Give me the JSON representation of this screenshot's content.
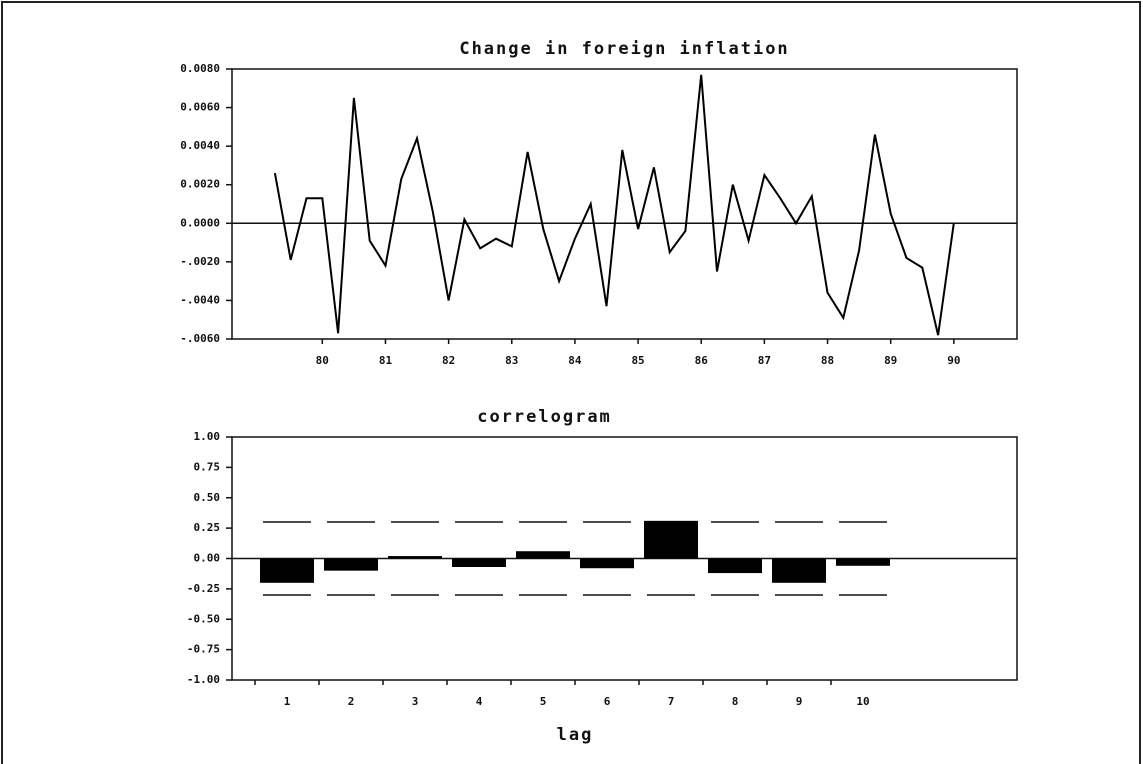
{
  "chart_data": [
    {
      "type": "line",
      "title": "Change in foreign inflation",
      "x": [
        79.25,
        79.5,
        79.75,
        80,
        80.25,
        80.5,
        80.75,
        81,
        81.25,
        81.5,
        81.75,
        82,
        82.25,
        82.5,
        82.75,
        83,
        83.25,
        83.5,
        83.75,
        84,
        84.25,
        84.5,
        84.75,
        85,
        85.25,
        85.5,
        85.75,
        86,
        86.25,
        86.5,
        86.75,
        87,
        87.25,
        87.5,
        87.75,
        88,
        88.25,
        88.5,
        88.75,
        89,
        89.25,
        89.5,
        89.75,
        90
      ],
      "values": [
        0.0026,
        -0.0019,
        0.0013,
        0.0013,
        -0.0057,
        0.0065,
        -0.0009,
        -0.0022,
        0.0023,
        0.0044,
        0.0006,
        -0.004,
        0.0002,
        -0.0013,
        -0.0008,
        -0.0012,
        0.0037,
        -0.0003,
        -0.003,
        -0.0008,
        0.001,
        -0.0043,
        0.0038,
        -0.0003,
        0.0029,
        -0.0015,
        -0.0004,
        0.0077,
        -0.0025,
        0.002,
        -0.0009,
        0.0025,
        0.0013,
        0.0,
        0.0014,
        -0.0036,
        -0.0049,
        -0.0014,
        0.0046,
        0.0005,
        -0.0018,
        -0.0023,
        -0.0058,
        0.0
      ],
      "color": "#000000",
      "xlim": [
        78.57,
        91.0
      ],
      "xticks": [
        80,
        81,
        82,
        83,
        84,
        85,
        86,
        87,
        88,
        89,
        90
      ],
      "ylim": [
        -0.006,
        0.008
      ],
      "yticks": [
        {
          "value": 0.008,
          "label": "0.0080"
        },
        {
          "value": 0.006,
          "label": "0.0060"
        },
        {
          "value": 0.004,
          "label": "0.0040"
        },
        {
          "value": 0.002,
          "label": "0.0020"
        },
        {
          "value": 0,
          "label": "0.0000"
        },
        {
          "value": -0.002,
          "label": "-.0020"
        },
        {
          "value": -0.004,
          "label": "-.0040"
        },
        {
          "value": -0.006,
          "label": "-.0060"
        }
      ],
      "zero_line": true
    },
    {
      "type": "bar",
      "title": "correlogram",
      "x_label": "lag",
      "categories": [
        "1",
        "2",
        "3",
        "4",
        "5",
        "6",
        "7",
        "8",
        "9",
        "10"
      ],
      "values": [
        -0.2,
        -0.1,
        0.02,
        -0.07,
        0.06,
        -0.08,
        0.31,
        -0.12,
        -0.2,
        -0.06
      ],
      "color": "#000000",
      "bounds": [
        0.3,
        -0.3
      ],
      "ylim": [
        -1,
        1
      ],
      "yticks": [
        {
          "value": 1,
          "label": "1.00"
        },
        0.75,
        {
          "value": 0.5,
          "label": "0.50"
        },
        0.25,
        {
          "value": 0,
          "label": "0.00"
        },
        -0.25,
        {
          "value": -0.5,
          "label": "-0.50"
        },
        -0.75,
        {
          "value": -1,
          "label": "-1.00"
        }
      ],
      "zero_line": true
    }
  ]
}
